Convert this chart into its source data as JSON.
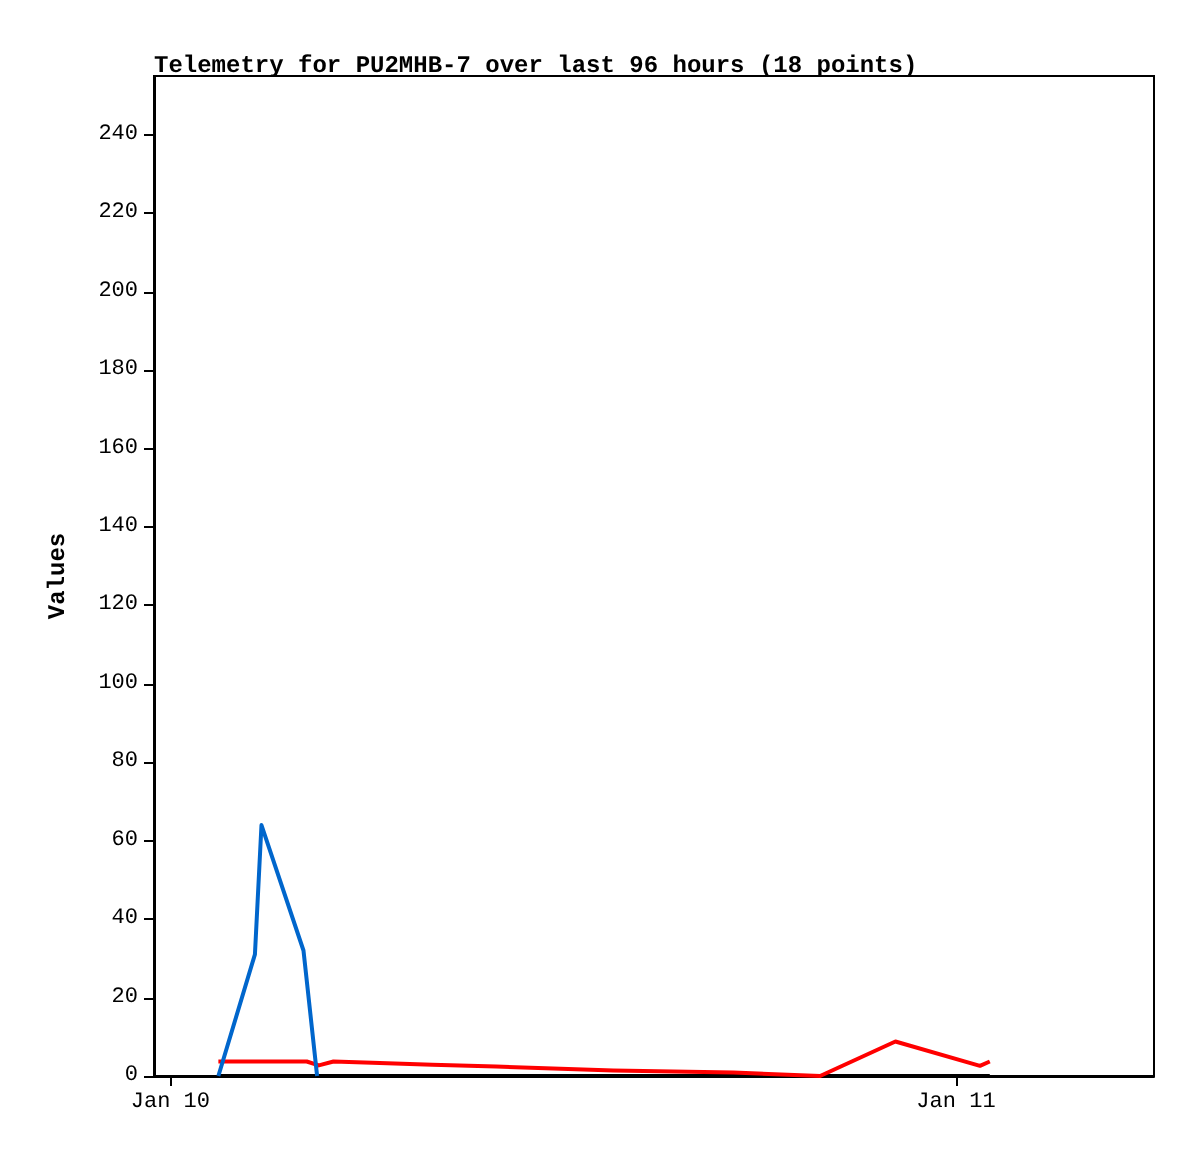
{
  "chart_data": {
    "type": "line",
    "title": "Telemetry for PU2MHB-7 over last 96 hours (18 points)",
    "ylabel": "Values",
    "xlim": [
      "--01-09T23:30",
      "--01-11T06:03"
    ],
    "xticks": [
      {
        "value": "--01-10",
        "label": "Jan 10"
      },
      {
        "value": "--01-11",
        "label": "Jan 11"
      }
    ],
    "ylim": [
      0,
      255
    ],
    "yticks": [
      0,
      20,
      40,
      60,
      80,
      100,
      120,
      140,
      160,
      180,
      200,
      220,
      240
    ],
    "grid": false,
    "marker": "none",
    "line_style": "solid",
    "series": [
      {
        "color": "#000000",
        "x": [
          "--01-10T01:28",
          "--01-11T01:02"
        ],
        "values": [
          0,
          0
        ]
      },
      {
        "color": "#ff0000",
        "x": [
          "--01-10T01:28",
          "--01-10T04:10",
          "--01-10T04:32",
          "--01-10T04:59",
          "--01-10T06:10",
          "--01-10T08:00",
          "--01-10T09:57",
          "--01-10T13:32",
          "--01-10T17:12",
          "--01-10T19:51",
          "--01-10T22:09",
          "--01-11T00:44",
          "--01-11T01:02"
        ],
        "values": [
          3.7,
          3.7,
          2.7,
          3.7,
          3.4,
          2.9,
          2.4,
          1.4,
          0.9,
          0,
          8.8,
          2.6,
          3.7
        ]
      },
      {
        "color": "#0066cc",
        "x": [
          "--01-10T01:28",
          "--01-10T02:35",
          "--01-10T02:47",
          "--01-10T04:04",
          "--01-10T04:29"
        ],
        "values": [
          0,
          31,
          64,
          32,
          0
        ]
      }
    ]
  }
}
